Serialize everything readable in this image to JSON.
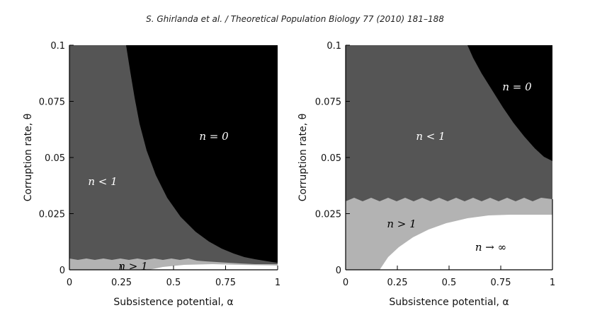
{
  "header": "S. Ghirlanda et al. / Theoretical Population Biology 77 (2010) 181–188",
  "colors": {
    "black": "#000000",
    "dark_gray": "#555555",
    "light_gray": "#b3b3b3",
    "white": "#ffffff"
  },
  "chart_data": [
    {
      "type": "heatmap",
      "title": "",
      "xlabel": "Subsistence potential, α",
      "ylabel": "Corruption rate, θ",
      "xlim": [
        0,
        1
      ],
      "ylim": [
        0,
        0.1
      ],
      "x_ticks": [
        "0",
        "0.25",
        "0.5",
        "0.75",
        "1"
      ],
      "y_ticks": [
        "0",
        "0.025",
        "0.05",
        "0.075",
        "0.1"
      ],
      "regions": [
        {
          "label": "n = 0",
          "color": "black"
        },
        {
          "label": "n < 1",
          "color": "dark_gray"
        },
        {
          "label": "n > 1",
          "color": "light_gray"
        }
      ]
    },
    {
      "type": "heatmap",
      "title": "",
      "xlabel": "Subsistence potential, α",
      "ylabel": "Corruption rate, θ",
      "xlim": [
        0,
        1
      ],
      "ylim": [
        0,
        0.1
      ],
      "x_ticks": [
        "0",
        "0.25",
        "0.5",
        "0.75",
        "1"
      ],
      "y_ticks": [
        "0",
        "0.025",
        "0.05",
        "0.075",
        "0.1"
      ],
      "regions": [
        {
          "label": "n = 0",
          "color": "black"
        },
        {
          "label": "n < 1",
          "color": "dark_gray"
        },
        {
          "label": "n > 1",
          "color": "light_gray"
        },
        {
          "label": "n → ∞",
          "color": "white"
        }
      ]
    }
  ]
}
